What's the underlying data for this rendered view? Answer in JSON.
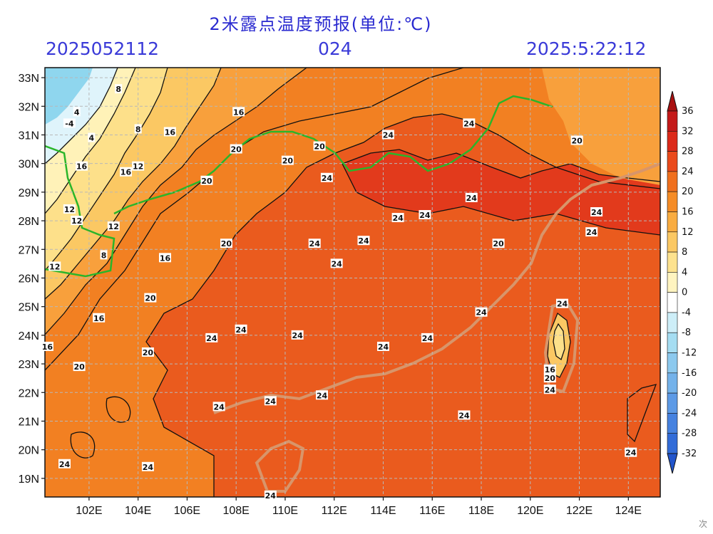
{
  "header": {
    "title": "2米露点温度预报(单位:℃)",
    "init_time": "2025052112",
    "forecast_hour": "024",
    "valid_time": "2025:5:22:12"
  },
  "map": {
    "lat_labels": [
      "33N",
      "32N",
      "31N",
      "30N",
      "29N",
      "28N",
      "27N",
      "26N",
      "25N",
      "24N",
      "23N",
      "22N",
      "21N",
      "20N",
      "19N"
    ],
    "lon_labels": [
      "102E",
      "104E",
      "106E",
      "108E",
      "110E",
      "112E",
      "114E",
      "116E",
      "118E",
      "120E",
      "122E",
      "124E"
    ],
    "colors": {
      "c_cold4": "#8fd6ee",
      "c_cold0": "#dff4fb",
      "c4": "#fff2b8",
      "c8": "#fde08a",
      "c12": "#fbc863",
      "c16": "#f8a03c",
      "c20": "#f28022",
      "c24": "#ea5b1e",
      "c28": "#e23a1c",
      "river": "#2ab52a",
      "coast": "#d8956a"
    },
    "contour_labels": [
      {
        "text": "8",
        "lon": 103.2,
        "lat": 32.6
      },
      {
        "text": "4",
        "lon": 101.5,
        "lat": 31.8
      },
      {
        "text": "-4",
        "lon": 101.2,
        "lat": 31.4
      },
      {
        "text": "4",
        "lon": 102.1,
        "lat": 30.9
      },
      {
        "text": "8",
        "lon": 104.0,
        "lat": 31.2
      },
      {
        "text": "16",
        "lon": 105.3,
        "lat": 31.1
      },
      {
        "text": "16",
        "lon": 108.1,
        "lat": 31.8
      },
      {
        "text": "20",
        "lon": 108.0,
        "lat": 30.5
      },
      {
        "text": "20",
        "lon": 110.1,
        "lat": 30.1
      },
      {
        "text": "12",
        "lon": 104.0,
        "lat": 29.9
      },
      {
        "text": "16",
        "lon": 103.5,
        "lat": 29.7
      },
      {
        "text": "16",
        "lon": 101.7,
        "lat": 29.9
      },
      {
        "text": "20",
        "lon": 106.8,
        "lat": 29.4
      },
      {
        "text": "12",
        "lon": 101.2,
        "lat": 28.4
      },
      {
        "text": "12",
        "lon": 101.5,
        "lat": 28.0
      },
      {
        "text": "12",
        "lon": 103.0,
        "lat": 27.8
      },
      {
        "text": "8",
        "lon": 102.6,
        "lat": 26.8
      },
      {
        "text": "16",
        "lon": 105.1,
        "lat": 26.7
      },
      {
        "text": "12",
        "lon": 100.6,
        "lat": 26.4
      },
      {
        "text": "20",
        "lon": 107.6,
        "lat": 27.2
      },
      {
        "text": "20",
        "lon": 111.4,
        "lat": 30.6
      },
      {
        "text": "24",
        "lon": 111.7,
        "lat": 29.5
      },
      {
        "text": "24",
        "lon": 114.2,
        "lat": 31.0
      },
      {
        "text": "24",
        "lon": 117.5,
        "lat": 31.4
      },
      {
        "text": "20",
        "lon": 121.9,
        "lat": 30.8
      },
      {
        "text": "24",
        "lon": 117.6,
        "lat": 28.8
      },
      {
        "text": "24",
        "lon": 115.7,
        "lat": 28.2
      },
      {
        "text": "24",
        "lon": 114.6,
        "lat": 28.1
      },
      {
        "text": "24",
        "lon": 122.7,
        "lat": 28.3
      },
      {
        "text": "24",
        "lon": 122.5,
        "lat": 27.6
      },
      {
        "text": "20",
        "lon": 118.7,
        "lat": 27.2
      },
      {
        "text": "24",
        "lon": 111.2,
        "lat": 27.2
      },
      {
        "text": "24",
        "lon": 113.2,
        "lat": 27.3
      },
      {
        "text": "24",
        "lon": 112.1,
        "lat": 26.5
      },
      {
        "text": "20",
        "lon": 104.5,
        "lat": 25.3
      },
      {
        "text": "16",
        "lon": 102.4,
        "lat": 24.6
      },
      {
        "text": "24",
        "lon": 108.2,
        "lat": 24.2
      },
      {
        "text": "24",
        "lon": 107.0,
        "lat": 23.9
      },
      {
        "text": "24",
        "lon": 110.5,
        "lat": 24.0
      },
      {
        "text": "24",
        "lon": 118.0,
        "lat": 24.8
      },
      {
        "text": "24",
        "lon": 115.8,
        "lat": 23.9
      },
      {
        "text": "24",
        "lon": 114.0,
        "lat": 23.6
      },
      {
        "text": "24",
        "lon": 121.3,
        "lat": 25.1
      },
      {
        "text": "16",
        "lon": 100.3,
        "lat": 23.6
      },
      {
        "text": "20",
        "lon": 104.4,
        "lat": 23.4
      },
      {
        "text": "20",
        "lon": 101.6,
        "lat": 22.9
      },
      {
        "text": "16",
        "lon": 120.8,
        "lat": 22.8
      },
      {
        "text": "20",
        "lon": 120.8,
        "lat": 22.5
      },
      {
        "text": "24",
        "lon": 120.8,
        "lat": 22.1
      },
      {
        "text": "24",
        "lon": 111.5,
        "lat": 21.9
      },
      {
        "text": "24",
        "lon": 109.4,
        "lat": 21.7
      },
      {
        "text": "24",
        "lon": 107.3,
        "lat": 21.5
      },
      {
        "text": "24",
        "lon": 117.3,
        "lat": 21.2
      },
      {
        "text": "24",
        "lon": 124.1,
        "lat": 19.9
      },
      {
        "text": "24",
        "lon": 101.0,
        "lat": 19.5
      },
      {
        "text": "24",
        "lon": 104.4,
        "lat": 19.4
      },
      {
        "text": "24",
        "lon": 109.4,
        "lat": 18.4
      }
    ]
  },
  "colorbar": {
    "labels": [
      "36",
      "32",
      "28",
      "24",
      "20",
      "16",
      "12",
      "8",
      "4",
      "0",
      "-4",
      "-8",
      "-12",
      "-16",
      "-20",
      "-24",
      "-28",
      "-32"
    ],
    "colors": [
      "#a81010",
      "#c41a1a",
      "#dc2a1a",
      "#ea4a1c",
      "#f0701e",
      "#f58c26",
      "#f9ac40",
      "#fbc863",
      "#fde28e",
      "#fff4c0",
      "#ffffff",
      "#cdeef8",
      "#a5ddf2",
      "#8cc9ee",
      "#74b2ea",
      "#5d9ae6",
      "#4682e0",
      "#326cd8",
      "#2255cc"
    ]
  },
  "watermark": "次"
}
